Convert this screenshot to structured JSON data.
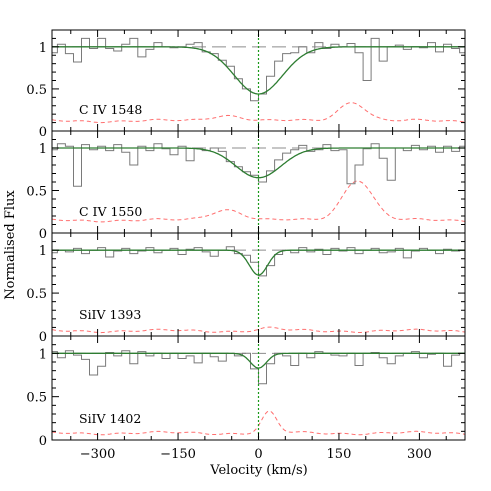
{
  "chart_data": {
    "type": "line",
    "xlabel": "Velocity (km/s)",
    "ylabel": "Normalised Flux",
    "xlim": [
      -385,
      385
    ],
    "ylim": [
      0,
      1.2
    ],
    "x_ticks": [
      -300,
      -150,
      0,
      150,
      300
    ],
    "x_tick_labels": [
      "−300",
      "−150",
      "0",
      "150",
      "300"
    ],
    "y_ticks": [
      0,
      0.5,
      1
    ],
    "y_tick_labels": [
      "0",
      "0.5",
      "1"
    ],
    "grid": false,
    "reference_lines": {
      "continuum": 1.0,
      "zero_velocity": 0
    },
    "colors": {
      "data": "#7a7a7a",
      "fit": "#2e7d32",
      "error": "#ff6f6f",
      "continuum": "#8c8c8c",
      "zero_velocity": "#1a9a1a"
    },
    "panels": [
      {
        "label": "C IV 1548",
        "data_step": {
          "x": [
            -385,
            -375,
            -360,
            -345,
            -330,
            -315,
            -300,
            -285,
            -270,
            -255,
            -240,
            -225,
            -210,
            -195,
            -180,
            -165,
            -150,
            -135,
            -120,
            -105,
            -90,
            -75,
            -60,
            -45,
            -30,
            -15,
            0,
            15,
            30,
            45,
            60,
            75,
            90,
            105,
            120,
            135,
            150,
            165,
            180,
            195,
            210,
            225,
            240,
            255,
            270,
            285,
            300,
            315,
            330,
            345,
            360,
            375
          ],
          "flux": [
            0.93,
            1.03,
            0.92,
            0.82,
            1.1,
            0.98,
            1.1,
            0.98,
            0.95,
            1.03,
            1.1,
            0.88,
            0.97,
            1.05,
            1.0,
            0.99,
            1.0,
            1.03,
            1.05,
            0.94,
            0.92,
            0.84,
            0.77,
            0.62,
            0.5,
            0.36,
            0.44,
            0.65,
            0.83,
            0.92,
            0.93,
            1.0,
            0.93,
            1.05,
            0.98,
            1.03,
            1.0,
            1.04,
            0.93,
            0.6,
            1.1,
            0.83,
            1.0,
            1.02,
            0.97,
            1.0,
            0.99,
            1.05,
            0.94,
            1.03,
            0.98,
            0.93
          ]
        },
        "fit": {
          "center": 0,
          "depth": 0.56,
          "sigma": 45
        },
        "error": {
          "base": 0.12,
          "features": [
            {
              "x": -60,
              "h": 0.07,
              "w": 30
            },
            {
              "x": 175,
              "h": 0.23,
              "w": 25
            }
          ]
        }
      },
      {
        "label": "C IV 1550",
        "data_step": {
          "x": [
            -385,
            -375,
            -360,
            -345,
            -330,
            -315,
            -300,
            -285,
            -270,
            -255,
            -240,
            -225,
            -210,
            -195,
            -180,
            -165,
            -150,
            -135,
            -120,
            -105,
            -90,
            -75,
            -60,
            -45,
            -30,
            -15,
            0,
            15,
            30,
            45,
            60,
            75,
            90,
            105,
            120,
            135,
            150,
            165,
            180,
            195,
            210,
            225,
            240,
            255,
            270,
            285,
            300,
            315,
            330,
            345,
            360,
            375
          ],
          "flux": [
            0.98,
            1.05,
            1.02,
            0.55,
            1.04,
            0.98,
            1.02,
            0.97,
            1.04,
            0.95,
            0.8,
            1.02,
            0.97,
            1.05,
            0.99,
            0.92,
            1.02,
            0.85,
            1.0,
            0.97,
            1.0,
            0.96,
            0.84,
            0.78,
            0.72,
            0.68,
            0.6,
            0.73,
            0.86,
            0.94,
            0.98,
            1.03,
            0.96,
            0.98,
            1.04,
            0.97,
            0.98,
            0.58,
            0.8,
            0.99,
            1.05,
            0.88,
            0.62,
            1.0,
            0.97,
            1.03,
            0.98,
            1.02,
            0.95,
            1.02,
            0.96,
            1.02
          ]
        },
        "fit": {
          "center": 0,
          "depth": 0.35,
          "sigma": 42
        },
        "error": {
          "base": 0.15,
          "features": [
            {
              "x": -60,
              "h": 0.13,
              "w": 30
            },
            {
              "x": 185,
              "h": 0.48,
              "w": 28
            }
          ]
        }
      },
      {
        "label": "SiIV 1393",
        "data_step": {
          "x": [
            -385,
            -375,
            -360,
            -345,
            -330,
            -315,
            -300,
            -285,
            -270,
            -255,
            -240,
            -225,
            -210,
            -195,
            -180,
            -165,
            -150,
            -135,
            -120,
            -105,
            -90,
            -75,
            -60,
            -45,
            -30,
            -15,
            0,
            15,
            30,
            45,
            60,
            75,
            90,
            105,
            120,
            135,
            150,
            165,
            180,
            195,
            210,
            225,
            240,
            255,
            270,
            285,
            300,
            315,
            330,
            345,
            360,
            375
          ],
          "flux": [
            0.97,
            1.0,
            0.98,
            1.02,
            0.96,
            1.0,
            1.03,
            0.92,
            0.99,
            1.02,
            0.96,
            0.99,
            1.03,
            0.97,
            1.0,
            1.02,
            0.95,
            1.01,
            1.03,
            0.98,
            0.93,
            1.0,
            1.04,
            0.96,
            0.94,
            0.86,
            0.7,
            0.82,
            0.95,
            1.0,
            0.97,
            1.03,
            0.98,
            1.01,
            0.95,
            1.02,
            0.99,
            1.03,
            0.96,
            1.0,
            1.02,
            0.97,
            0.98,
            1.02,
            0.91,
            0.99,
            1.02,
            1.0,
            0.96,
            1.01,
            0.99,
            1.0
          ]
        },
        "fit": {
          "center": 0,
          "depth": 0.29,
          "sigma": 17
        },
        "error": {
          "base": 0.06,
          "features": [
            {
              "x": 20,
              "h": 0.03,
              "w": 20
            }
          ]
        }
      },
      {
        "label": "SiIV 1402",
        "data_step": {
          "x": [
            -385,
            -375,
            -360,
            -345,
            -330,
            -315,
            -300,
            -285,
            -270,
            -255,
            -240,
            -225,
            -210,
            -195,
            -180,
            -165,
            -150,
            -135,
            -120,
            -105,
            -90,
            -75,
            -60,
            -45,
            -30,
            -15,
            0,
            15,
            30,
            45,
            60,
            75,
            90,
            105,
            120,
            135,
            150,
            165,
            180,
            195,
            210,
            225,
            240,
            255,
            270,
            285,
            300,
            315,
            330,
            345,
            360,
            375
          ],
          "flux": [
            1.02,
            0.95,
            1.03,
            0.98,
            0.93,
            0.75,
            0.85,
            1.01,
            0.97,
            1.03,
            0.88,
            1.02,
            0.97,
            1.0,
            0.94,
            1.0,
            0.94,
            0.97,
            0.89,
            1.0,
            0.96,
            0.91,
            1.0,
            0.97,
            1.0,
            0.82,
            0.65,
            0.88,
            1.0,
            0.97,
            0.86,
            1.0,
            0.95,
            1.02,
            1.0,
            0.98,
            0.97,
            1.0,
            0.86,
            1.0,
            1.01,
            0.95,
            0.88,
            0.97,
            1.0,
            1.02,
            0.95,
            0.99,
            1.0,
            0.85,
            0.98,
            1.0
          ]
        },
        "fit": {
          "center": 0,
          "depth": 0.17,
          "sigma": 15
        },
        "error": {
          "base": 0.08,
          "features": [
            {
              "x": 20,
              "h": 0.24,
              "w": 14
            }
          ]
        }
      }
    ]
  }
}
